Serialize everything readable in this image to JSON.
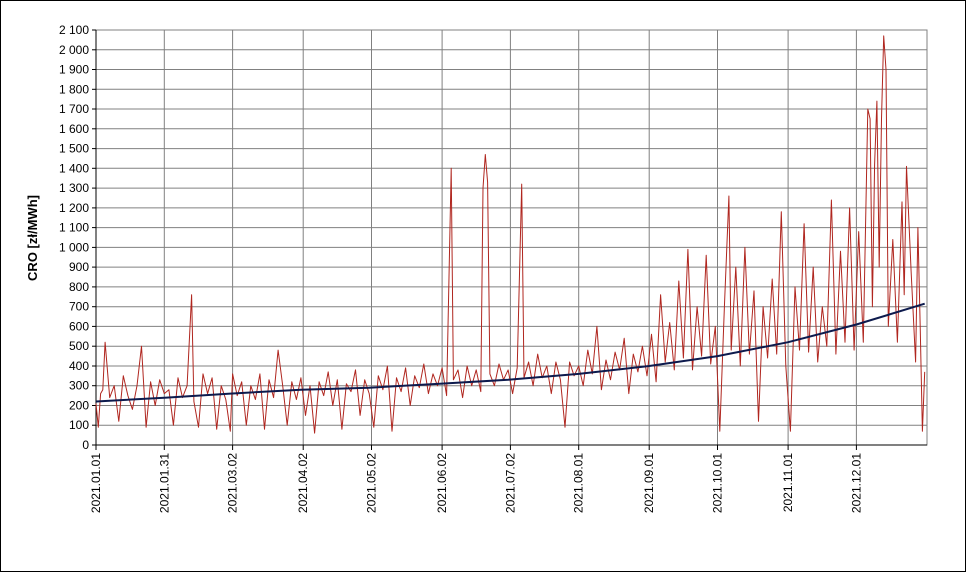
{
  "chart_data": {
    "type": "line",
    "title": "",
    "xlabel": "",
    "ylabel": "CRO [zł/MWh]",
    "ylim": [
      0,
      2100
    ],
    "yticks": [
      0,
      100,
      200,
      300,
      400,
      500,
      600,
      700,
      800,
      900,
      1000,
      1100,
      1200,
      1300,
      1400,
      1500,
      1600,
      1700,
      1800,
      1900,
      2000,
      2100
    ],
    "ytick_labels": [
      "0",
      "100",
      "200",
      "300",
      "400",
      "500",
      "600",
      "700",
      "800",
      "900",
      "1 000",
      "1 100",
      "1 200",
      "1 300",
      "1 400",
      "1 500",
      "1 600",
      "1 700",
      "1 800",
      "1 900",
      "2 000",
      "2 100"
    ],
    "xlim": [
      "2021-01-01",
      "2022-01-01"
    ],
    "xticks": [
      "2021-01-01",
      "2021-01-31",
      "2021-03-02",
      "2021-04-02",
      "2021-05-02",
      "2021-06-02",
      "2021-07-02",
      "2021-08-01",
      "2021-09-01",
      "2021-10-01",
      "2021-11-01",
      "2021-12-01"
    ],
    "xtick_labels": [
      "2021.01.01",
      "2021.01.31",
      "2021.03.02",
      "2021.04.02",
      "2021.05.02",
      "2021.06.02",
      "2021.07.02",
      "2021.08.01",
      "2021.09.01",
      "2021.10.01",
      "2021.11.01",
      "2021.12.01"
    ],
    "grid": true,
    "legend": "none",
    "series": [
      {
        "kind": "hourly-price",
        "color": "#b0261f",
        "points": [
          [
            "2021-01-01",
            210
          ],
          [
            "2021-01-02",
            90
          ],
          [
            "2021-01-03",
            260
          ],
          [
            "2021-01-04",
            280
          ],
          [
            "2021-01-05",
            520
          ],
          [
            "2021-01-07",
            240
          ],
          [
            "2021-01-09",
            300
          ],
          [
            "2021-01-11",
            120
          ],
          [
            "2021-01-13",
            350
          ],
          [
            "2021-01-15",
            250
          ],
          [
            "2021-01-17",
            180
          ],
          [
            "2021-01-19",
            300
          ],
          [
            "2021-01-21",
            500
          ],
          [
            "2021-01-23",
            90
          ],
          [
            "2021-01-25",
            320
          ],
          [
            "2021-01-27",
            200
          ],
          [
            "2021-01-29",
            330
          ],
          [
            "2021-01-31",
            260
          ],
          [
            "2021-02-02",
            280
          ],
          [
            "2021-02-04",
            100
          ],
          [
            "2021-02-06",
            340
          ],
          [
            "2021-02-08",
            240
          ],
          [
            "2021-02-10",
            300
          ],
          [
            "2021-02-12",
            760
          ],
          [
            "2021-02-13",
            220
          ],
          [
            "2021-02-15",
            90
          ],
          [
            "2021-02-17",
            360
          ],
          [
            "2021-02-19",
            260
          ],
          [
            "2021-02-21",
            340
          ],
          [
            "2021-02-23",
            80
          ],
          [
            "2021-02-25",
            300
          ],
          [
            "2021-02-27",
            230
          ],
          [
            "2021-03-01",
            70
          ],
          [
            "2021-03-02",
            360
          ],
          [
            "2021-03-04",
            250
          ],
          [
            "2021-03-06",
            320
          ],
          [
            "2021-03-08",
            100
          ],
          [
            "2021-03-10",
            300
          ],
          [
            "2021-03-12",
            230
          ],
          [
            "2021-03-14",
            360
          ],
          [
            "2021-03-16",
            80
          ],
          [
            "2021-03-18",
            330
          ],
          [
            "2021-03-20",
            240
          ],
          [
            "2021-03-22",
            480
          ],
          [
            "2021-03-24",
            300
          ],
          [
            "2021-03-26",
            100
          ],
          [
            "2021-03-28",
            320
          ],
          [
            "2021-03-30",
            230
          ],
          [
            "2021-04-01",
            340
          ],
          [
            "2021-04-03",
            150
          ],
          [
            "2021-04-05",
            300
          ],
          [
            "2021-04-07",
            60
          ],
          [
            "2021-04-09",
            320
          ],
          [
            "2021-04-11",
            250
          ],
          [
            "2021-04-13",
            370
          ],
          [
            "2021-04-15",
            200
          ],
          [
            "2021-04-17",
            330
          ],
          [
            "2021-04-19",
            80
          ],
          [
            "2021-04-21",
            310
          ],
          [
            "2021-04-23",
            270
          ],
          [
            "2021-04-25",
            380
          ],
          [
            "2021-04-27",
            150
          ],
          [
            "2021-04-29",
            330
          ],
          [
            "2021-05-01",
            260
          ],
          [
            "2021-05-03",
            90
          ],
          [
            "2021-05-05",
            350
          ],
          [
            "2021-05-07",
            280
          ],
          [
            "2021-05-09",
            400
          ],
          [
            "2021-05-11",
            70
          ],
          [
            "2021-05-13",
            340
          ],
          [
            "2021-05-15",
            270
          ],
          [
            "2021-05-17",
            390
          ],
          [
            "2021-05-19",
            200
          ],
          [
            "2021-05-21",
            350
          ],
          [
            "2021-05-23",
            290
          ],
          [
            "2021-05-25",
            410
          ],
          [
            "2021-05-27",
            260
          ],
          [
            "2021-05-29",
            360
          ],
          [
            "2021-05-31",
            300
          ],
          [
            "2021-06-02",
            390
          ],
          [
            "2021-06-04",
            250
          ],
          [
            "2021-06-06",
            1400
          ],
          [
            "2021-06-07",
            330
          ],
          [
            "2021-06-09",
            380
          ],
          [
            "2021-06-11",
            240
          ],
          [
            "2021-06-13",
            400
          ],
          [
            "2021-06-15",
            300
          ],
          [
            "2021-06-17",
            380
          ],
          [
            "2021-06-19",
            270
          ],
          [
            "2021-06-20",
            1300
          ],
          [
            "2021-06-21",
            1470
          ],
          [
            "2021-06-22",
            1330
          ],
          [
            "2021-06-23",
            360
          ],
          [
            "2021-06-25",
            300
          ],
          [
            "2021-06-27",
            410
          ],
          [
            "2021-06-29",
            330
          ],
          [
            "2021-07-01",
            380
          ],
          [
            "2021-07-03",
            260
          ],
          [
            "2021-07-05",
            390
          ],
          [
            "2021-07-07",
            1320
          ],
          [
            "2021-07-08",
            340
          ],
          [
            "2021-07-10",
            420
          ],
          [
            "2021-07-12",
            300
          ],
          [
            "2021-07-14",
            460
          ],
          [
            "2021-07-16",
            340
          ],
          [
            "2021-07-18",
            400
          ],
          [
            "2021-07-20",
            260
          ],
          [
            "2021-07-22",
            420
          ],
          [
            "2021-07-24",
            330
          ],
          [
            "2021-07-26",
            90
          ],
          [
            "2021-07-28",
            420
          ],
          [
            "2021-07-30",
            350
          ],
          [
            "2021-08-01",
            400
          ],
          [
            "2021-08-03",
            300
          ],
          [
            "2021-08-05",
            480
          ],
          [
            "2021-08-07",
            360
          ],
          [
            "2021-08-09",
            600
          ],
          [
            "2021-08-11",
            280
          ],
          [
            "2021-08-13",
            430
          ],
          [
            "2021-08-15",
            330
          ],
          [
            "2021-08-17",
            470
          ],
          [
            "2021-08-19",
            380
          ],
          [
            "2021-08-21",
            540
          ],
          [
            "2021-08-23",
            260
          ],
          [
            "2021-08-25",
            460
          ],
          [
            "2021-08-27",
            370
          ],
          [
            "2021-08-29",
            500
          ],
          [
            "2021-08-31",
            350
          ],
          [
            "2021-09-02",
            560
          ],
          [
            "2021-09-04",
            320
          ],
          [
            "2021-09-06",
            760
          ],
          [
            "2021-09-08",
            420
          ],
          [
            "2021-09-10",
            620
          ],
          [
            "2021-09-12",
            380
          ],
          [
            "2021-09-14",
            830
          ],
          [
            "2021-09-16",
            440
          ],
          [
            "2021-09-18",
            990
          ],
          [
            "2021-09-20",
            380
          ],
          [
            "2021-09-22",
            700
          ],
          [
            "2021-09-24",
            450
          ],
          [
            "2021-09-26",
            960
          ],
          [
            "2021-09-28",
            410
          ],
          [
            "2021-09-30",
            600
          ],
          [
            "2021-10-02",
            70
          ],
          [
            "2021-10-04",
            700
          ],
          [
            "2021-10-06",
            1260
          ],
          [
            "2021-10-07",
            480
          ],
          [
            "2021-10-09",
            900
          ],
          [
            "2021-10-11",
            400
          ],
          [
            "2021-10-13",
            1000
          ],
          [
            "2021-10-15",
            460
          ],
          [
            "2021-10-17",
            780
          ],
          [
            "2021-10-19",
            120
          ],
          [
            "2021-10-21",
            700
          ],
          [
            "2021-10-23",
            440
          ],
          [
            "2021-10-25",
            840
          ],
          [
            "2021-10-27",
            460
          ],
          [
            "2021-10-29",
            1180
          ],
          [
            "2021-10-31",
            400
          ],
          [
            "2021-11-02",
            70
          ],
          [
            "2021-11-04",
            800
          ],
          [
            "2021-11-06",
            480
          ],
          [
            "2021-11-08",
            1120
          ],
          [
            "2021-11-10",
            470
          ],
          [
            "2021-11-12",
            900
          ],
          [
            "2021-11-14",
            420
          ],
          [
            "2021-11-16",
            700
          ],
          [
            "2021-11-18",
            500
          ],
          [
            "2021-11-20",
            1240
          ],
          [
            "2021-11-22",
            460
          ],
          [
            "2021-11-24",
            980
          ],
          [
            "2021-11-26",
            520
          ],
          [
            "2021-11-28",
            1200
          ],
          [
            "2021-11-30",
            480
          ],
          [
            "2021-12-02",
            1080
          ],
          [
            "2021-12-04",
            520
          ],
          [
            "2021-12-06",
            1700
          ],
          [
            "2021-12-07",
            1650
          ],
          [
            "2021-12-08",
            700
          ],
          [
            "2021-12-09",
            1420
          ],
          [
            "2021-12-10",
            1740
          ],
          [
            "2021-12-11",
            900
          ],
          [
            "2021-12-12",
            1650
          ],
          [
            "2021-12-13",
            2070
          ],
          [
            "2021-12-14",
            1900
          ],
          [
            "2021-12-15",
            600
          ],
          [
            "2021-12-17",
            1040
          ],
          [
            "2021-12-19",
            520
          ],
          [
            "2021-12-21",
            1230
          ],
          [
            "2021-12-22",
            760
          ],
          [
            "2021-12-23",
            1410
          ],
          [
            "2021-12-25",
            880
          ],
          [
            "2021-12-27",
            420
          ],
          [
            "2021-12-28",
            1100
          ],
          [
            "2021-12-29",
            600
          ],
          [
            "2021-12-30",
            70
          ],
          [
            "2021-12-31",
            370
          ]
        ]
      },
      {
        "kind": "trend",
        "color": "#0d1a4d",
        "points": [
          [
            "2021-01-01",
            220
          ],
          [
            "2021-02-01",
            240
          ],
          [
            "2021-03-01",
            260
          ],
          [
            "2021-04-01",
            280
          ],
          [
            "2021-05-01",
            290
          ],
          [
            "2021-06-01",
            310
          ],
          [
            "2021-07-01",
            330
          ],
          [
            "2021-08-01",
            360
          ],
          [
            "2021-09-01",
            400
          ],
          [
            "2021-10-01",
            450
          ],
          [
            "2021-11-01",
            520
          ],
          [
            "2021-12-01",
            610
          ],
          [
            "2021-12-31",
            715
          ]
        ]
      }
    ]
  }
}
